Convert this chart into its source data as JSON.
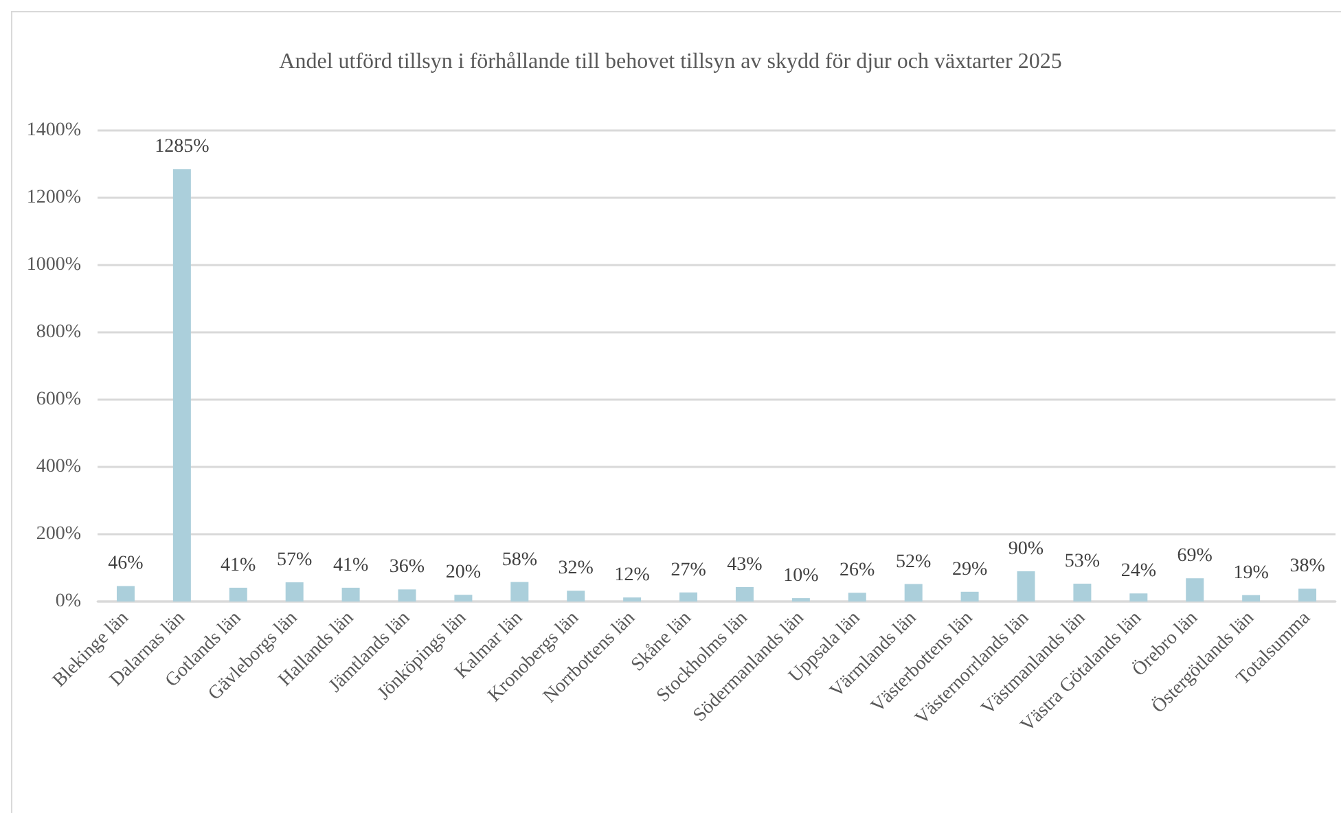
{
  "chart_data": {
    "type": "bar",
    "title": "Andel utförd tillsyn i förhållande till behovet tillsyn av skydd för djur och växtarter 2025",
    "categories": [
      "Blekinge län",
      "Dalarnas län",
      "Gotlands län",
      "Gävleborgs län",
      "Hallands län",
      "Jämtlands län",
      "Jönköpings län",
      "Kalmar län",
      "Kronobergs län",
      "Norrbottens län",
      "Skåne län",
      "Stockholms län",
      "Södermanlands län",
      "Uppsala län",
      "Värmlands län",
      "Västerbottens län",
      "Västernorrlands län",
      "Västmanlands län",
      "Västra Götalands län",
      "Örebro län",
      "Östergötlands län",
      "Totalsumma"
    ],
    "values": [
      46,
      1285,
      41,
      57,
      41,
      36,
      20,
      58,
      32,
      12,
      27,
      43,
      10,
      26,
      52,
      29,
      90,
      53,
      24,
      69,
      19,
      38
    ],
    "value_labels": [
      "46%",
      "1285%",
      "41%",
      "57%",
      "41%",
      "36%",
      "20%",
      "58%",
      "32%",
      "12%",
      "27%",
      "43%",
      "10%",
      "26%",
      "52%",
      "29%",
      "90%",
      "53%",
      "24%",
      "69%",
      "19%",
      "38%"
    ],
    "color": "#abcfdb",
    "ylim": [
      0,
      1400
    ],
    "yticks": [
      {
        "value": 0,
        "label": "0%"
      },
      {
        "value": 200,
        "label": "200%"
      },
      {
        "value": 400,
        "label": "400%"
      },
      {
        "value": 600,
        "label": "600%"
      },
      {
        "value": 800,
        "label": "800%"
      },
      {
        "value": 1000,
        "label": "1000%"
      },
      {
        "value": 1200,
        "label": "1200%"
      },
      {
        "value": 1400,
        "label": "1400%"
      }
    ],
    "grid": "y"
  }
}
